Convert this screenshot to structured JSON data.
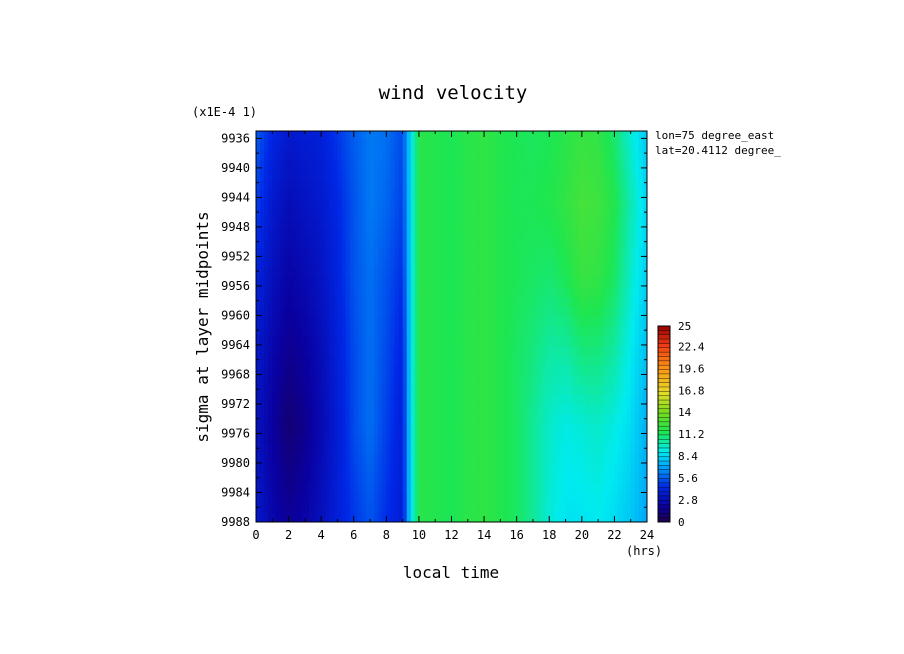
{
  "chart_data": {
    "type": "heatmap",
    "title": "wind velocity",
    "xlabel": "local time",
    "ylabel": "sigma at layer midpoints",
    "x_unit": "(hrs)",
    "y_scale_note": "(x1E-4 1)",
    "annotations": [
      "lon=75 degree_east",
      "lat=20.4112 degree_"
    ],
    "x_ticks": [
      "0",
      "2",
      "4",
      "6",
      "8",
      "10",
      "12",
      "14",
      "16",
      "18",
      "20",
      "22",
      "24"
    ],
    "y_ticks": [
      "9936",
      "9940",
      "9944",
      "9948",
      "9952",
      "9956",
      "9960",
      "9964",
      "9968",
      "9972",
      "9976",
      "9980",
      "9984",
      "9988"
    ],
    "xlim": [
      0,
      24
    ],
    "ylim": [
      0.9935,
      0.9988
    ],
    "y_inverted": true,
    "colorbar": {
      "min": 0,
      "max": 25,
      "tick_labels": [
        "25",
        "22.4",
        "19.6",
        "16.8",
        "14",
        "11.2",
        "8.4",
        "5.6",
        "2.8",
        "0"
      ]
    },
    "x": [
      0,
      1,
      2,
      3,
      4,
      5,
      6,
      7,
      8,
      9,
      9.5,
      10,
      11,
      12,
      13,
      14,
      15,
      16,
      17,
      18,
      19,
      20,
      21,
      22,
      23,
      24
    ],
    "y": [
      0.9935,
      0.9945,
      0.9955,
      0.9965,
      0.9975,
      0.9988
    ],
    "values": [
      [
        5.6,
        4.4,
        3.6,
        3.8,
        4.0,
        4.8,
        5.6,
        6.2,
        6.0,
        5.2,
        8.6,
        11.8,
        11.6,
        11.4,
        11.8,
        12.0,
        11.6,
        11.4,
        11.3,
        11.4,
        11.8,
        12.2,
        12.0,
        11.0,
        9.4,
        8.0
      ],
      [
        5.0,
        3.6,
        2.8,
        3.2,
        3.6,
        4.4,
        5.4,
        6.2,
        5.8,
        5.0,
        8.6,
        11.8,
        11.6,
        11.4,
        11.8,
        12.0,
        11.6,
        11.4,
        11.4,
        11.6,
        12.0,
        12.6,
        12.4,
        11.6,
        10.0,
        8.4
      ],
      [
        4.2,
        3.0,
        2.2,
        2.6,
        3.2,
        4.2,
        5.4,
        6.0,
        5.4,
        4.6,
        8.6,
        11.8,
        11.6,
        11.4,
        11.8,
        12.0,
        11.6,
        11.4,
        11.2,
        11.0,
        11.4,
        12.2,
        12.0,
        11.2,
        9.6,
        8.2
      ],
      [
        3.6,
        2.4,
        1.6,
        2.0,
        2.8,
        4.0,
        5.2,
        6.0,
        5.2,
        4.2,
        8.6,
        11.8,
        11.6,
        11.4,
        11.8,
        12.0,
        11.6,
        11.2,
        10.8,
        10.2,
        10.2,
        10.8,
        10.8,
        10.2,
        9.0,
        7.8
      ],
      [
        3.2,
        2.0,
        1.0,
        1.6,
        2.6,
        3.8,
        5.2,
        6.0,
        5.0,
        4.0,
        8.6,
        11.8,
        11.6,
        11.4,
        11.8,
        12.0,
        11.6,
        11.2,
        10.4,
        9.6,
        9.2,
        9.4,
        9.6,
        9.2,
        8.6,
        7.4
      ],
      [
        3.6,
        2.4,
        1.8,
        2.2,
        3.0,
        4.0,
        4.8,
        5.4,
        4.6,
        3.8,
        8.6,
        11.8,
        11.6,
        11.4,
        11.8,
        12.0,
        11.6,
        11.2,
        10.4,
        9.4,
        8.8,
        8.8,
        9.0,
        8.6,
        8.0,
        7.2
      ]
    ]
  }
}
